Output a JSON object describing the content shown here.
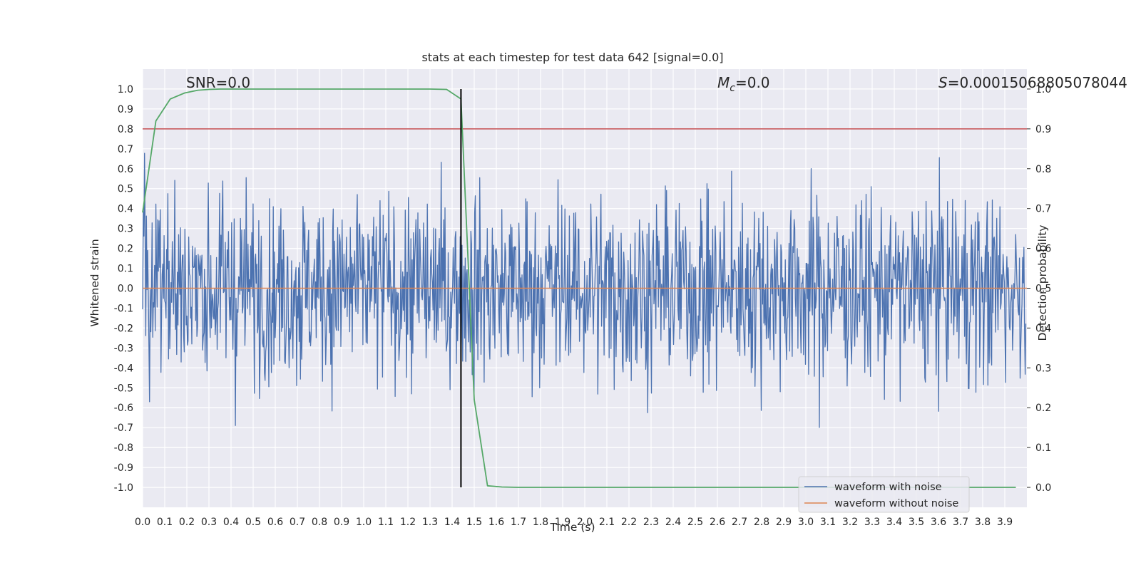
{
  "chart_data": {
    "type": "line",
    "title": "stats at each timestep for test data 642 [signal=0.0]",
    "xlabel": "Time (s)",
    "ylabel": "Whitened strain",
    "y2label": "Detection probability",
    "xlim": [
      0.0,
      4.0
    ],
    "ylim": [
      -1.1,
      1.1
    ],
    "y2lim": [
      -0.05,
      1.05
    ],
    "x_ticks": [
      "0.0",
      "0.1",
      "0.2",
      "0.3",
      "0.4",
      "0.5",
      "0.6",
      "0.7",
      "0.8",
      "0.9",
      "1.0",
      "1.1",
      "1.2",
      "1.3",
      "1.4",
      "1.5",
      "1.6",
      "1.7",
      "1.8",
      "1.9",
      "2.0",
      "2.1",
      "2.2",
      "2.3",
      "2.4",
      "2.5",
      "2.6",
      "2.7",
      "2.8",
      "2.9",
      "3.0",
      "3.1",
      "3.2",
      "3.3",
      "3.4",
      "3.5",
      "3.6",
      "3.7",
      "3.8",
      "3.9"
    ],
    "y_ticks": [
      "1.0",
      "0.9",
      "0.8",
      "0.7",
      "0.6",
      "0.5",
      "0.4",
      "0.3",
      "0.2",
      "0.1",
      "0.0",
      "-0.1",
      "-0.2",
      "-0.3",
      "-0.4",
      "-0.5",
      "-0.6",
      "-0.7",
      "-0.8",
      "-0.9",
      "-1.0"
    ],
    "y2_ticks": [
      "1.0",
      "0.9",
      "0.8",
      "0.7",
      "0.6",
      "0.5",
      "0.4",
      "0.3",
      "0.2",
      "0.1",
      "0.0"
    ],
    "grid": true,
    "legend_position": "bottom-right",
    "annotations": {
      "snr_label": "SNR=0.0",
      "mc_symbol": "M",
      "mc_sub": "c",
      "mc_value": "=0.0",
      "s_symbol": "S",
      "s_value": "=0.00015068805078044"
    },
    "series": [
      {
        "name": "waveform with noise",
        "color": "#4c72b0",
        "kind": "noise",
        "amplitude_envelope": 0.9,
        "sample_count": 1400
      },
      {
        "name": "waveform without noise",
        "color": "#dd8452",
        "x": [
          0.0,
          4.0
        ],
        "y": [
          0.0,
          0.0
        ]
      },
      {
        "name": "detection probability",
        "axis": "right",
        "color": "#55a868",
        "x": [
          0.0,
          0.06,
          0.125,
          0.19,
          0.25,
          0.3,
          0.35,
          0.4,
          0.5,
          0.6,
          0.7,
          0.8,
          0.9,
          1.0,
          1.1,
          1.2,
          1.3,
          1.375,
          1.44,
          1.5,
          1.56,
          1.625,
          1.7,
          1.8,
          2.0,
          2.5,
          3.0,
          3.5,
          3.95
        ],
        "y": [
          0.69,
          0.92,
          0.975,
          0.99,
          0.997,
          0.999,
          1.0,
          1.0,
          1.0,
          1.0,
          1.0,
          1.0,
          1.0,
          1.0,
          1.0,
          1.0,
          1.0,
          0.999,
          0.975,
          0.22,
          0.004,
          0.001,
          0.0,
          0.0,
          0.0,
          0.0,
          0.0,
          0.0,
          0.0
        ]
      }
    ],
    "threshold": {
      "axis": "right",
      "value": 0.9,
      "color": "#c44e52"
    },
    "vline": {
      "x": 1.44,
      "color": "#000000"
    },
    "colors": {
      "background": "#eaeaf2",
      "grid": "#ffffff"
    }
  }
}
